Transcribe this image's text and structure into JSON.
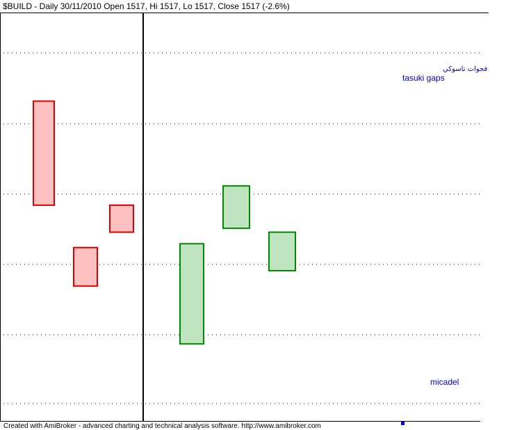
{
  "chart_data": {
    "type": "candlestick",
    "title": "$BUILD - Daily 30/11/2010 Open 1517, Hi 1517, Lo 1517, Close 1517 (-2.6%)",
    "grid": true,
    "candles": [
      {
        "open": 88,
        "close": 61,
        "color": "#dd0000",
        "fill": "#ffc0c0"
      },
      {
        "open": 50,
        "close": 40,
        "color": "#dd0000",
        "fill": "#ffc0c0"
      },
      {
        "open": 61,
        "close": 54,
        "color": "#dd0000",
        "fill": "#ffc0c0"
      },
      {
        "open": 25,
        "close": 51,
        "color": "#008800",
        "fill": "#c0e4c0"
      },
      {
        "open": 55,
        "close": 66,
        "color": "#008800",
        "fill": "#c0e4c0"
      },
      {
        "open": 44,
        "close": 54,
        "color": "#008800",
        "fill": "#c0e4c0"
      }
    ],
    "ylim": [
      5,
      111
    ],
    "annotations": {
      "arabic": "فجوات تاسوكي",
      "english": "tasuki gaps",
      "author": "micadel"
    }
  },
  "footer": "Created with AmiBroker - advanced charting and technical analysis software. http://www.amibroker.com",
  "colors": {
    "axis": "#000000",
    "grid": "#000000",
    "annotation": "#0000c0",
    "marker": "#0000ff"
  }
}
